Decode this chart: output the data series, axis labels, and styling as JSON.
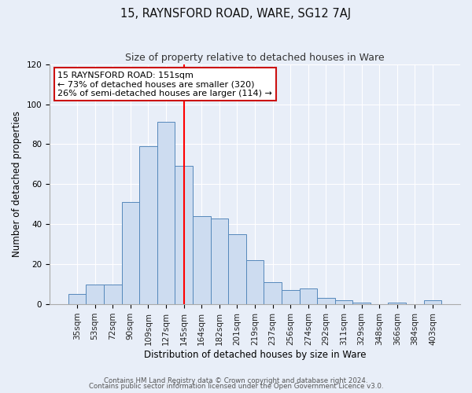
{
  "title": "15, RAYNSFORD ROAD, WARE, SG12 7AJ",
  "subtitle": "Size of property relative to detached houses in Ware",
  "xlabel": "Distribution of detached houses by size in Ware",
  "ylabel": "Number of detached properties",
  "bar_values": [
    5,
    10,
    10,
    51,
    79,
    91,
    69,
    44,
    43,
    35,
    22,
    11,
    7,
    8,
    3,
    2,
    1,
    0,
    1,
    0,
    2
  ],
  "bar_labels": [
    "35sqm",
    "53sqm",
    "72sqm",
    "90sqm",
    "109sqm",
    "127sqm",
    "145sqm",
    "164sqm",
    "182sqm",
    "201sqm",
    "219sqm",
    "237sqm",
    "256sqm",
    "274sqm",
    "292sqm",
    "311sqm",
    "329sqm",
    "348sqm",
    "366sqm",
    "384sqm",
    "403sqm"
  ],
  "bar_color": "#cddcf0",
  "bar_edgecolor": "#5588bb",
  "vline_x": 6.0,
  "vline_color": "red",
  "ylim": [
    0,
    120
  ],
  "yticks": [
    0,
    20,
    40,
    60,
    80,
    100,
    120
  ],
  "annotation_title": "15 RAYNSFORD ROAD: 151sqm",
  "annotation_line1": "← 73% of detached houses are smaller (320)",
  "annotation_line2": "26% of semi-detached houses are larger (114) →",
  "footer1": "Contains HM Land Registry data © Crown copyright and database right 2024.",
  "footer2": "Contains public sector information licensed under the Open Government Licence v3.0.",
  "background_color": "#e8eef8",
  "plot_bg_color": "#e8eef8",
  "grid_color": "#ffffff",
  "title_fontsize": 10.5,
  "subtitle_fontsize": 9,
  "axis_label_fontsize": 8.5,
  "tick_fontsize": 7.5,
  "annotation_fontsize": 8
}
